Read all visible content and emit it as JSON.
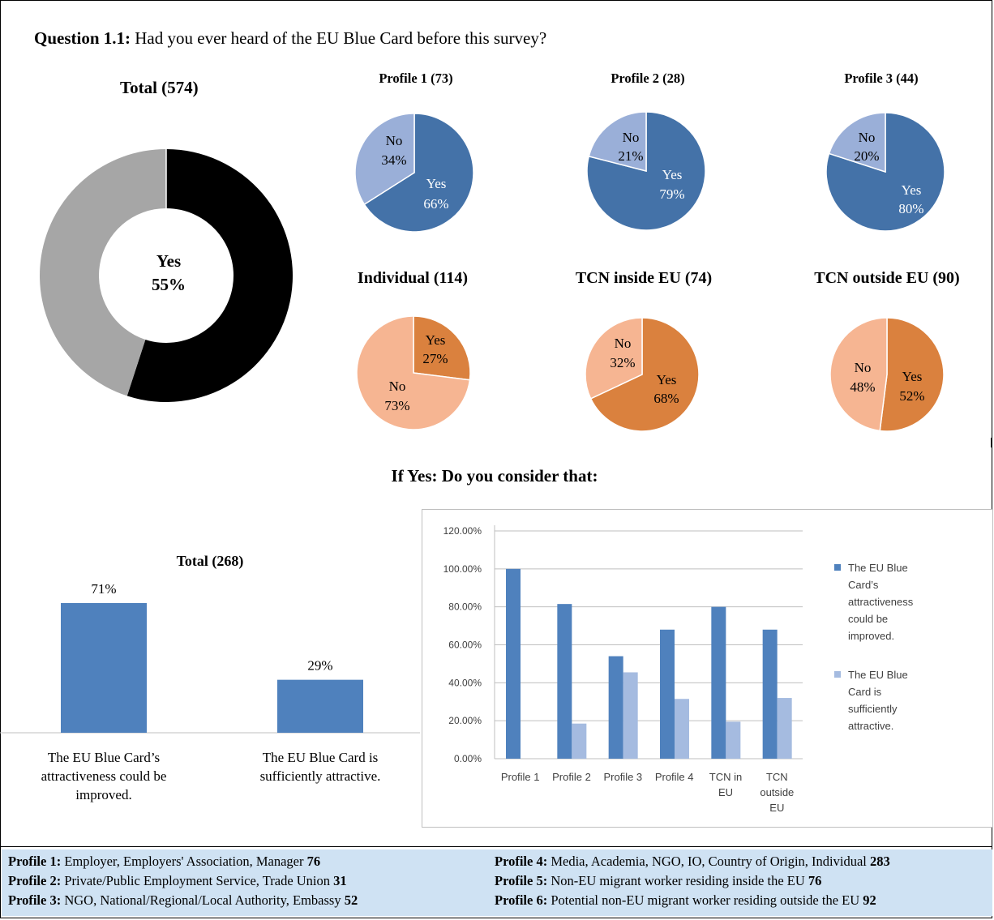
{
  "question": {
    "label": "Question 1.1:",
    "text": "Had you ever heard of the EU Blue Card before this survey?"
  },
  "total_title": "Total (574)",
  "donut_center": {
    "label": "Yes",
    "value": "55%"
  },
  "profile_titles": [
    "Profile 1 (73)",
    "Profile 2 (28)",
    "Profile 3 (44)"
  ],
  "group_titles": [
    "Individual (114)",
    "TCN inside EU (74)",
    "TCN outside EU (90)"
  ],
  "followup_title": "If Yes: Do you consider that:",
  "bar_total_title": "Total (268)",
  "bar_total_categories": [
    "The EU Blue Card’s attractiveness could be improved.",
    "The EU Blue Card is sufficiently attractive."
  ],
  "bar_total_value_labels": [
    "71%",
    "29%"
  ],
  "legend": [
    "The EU Blue Card’s attractiveness could be improved.",
    "The EU Blue Card is sufficiently attractive."
  ],
  "colors": {
    "blue": "#4472a8",
    "light_blue": "#9aafd8",
    "orange": "#da813e",
    "peach": "#f6b592",
    "black": "#000000",
    "gray": "#a6a6a6",
    "bar_blue": "#4f81bd",
    "bar_light": "#a5bbe0",
    "footer_bg": "#cfe2f3"
  },
  "footer": {
    "left": [
      {
        "label": "Profile 1:",
        "text": "Employer, Employers' Association, Manager",
        "count": "76"
      },
      {
        "label": "Profile 2:",
        "text": "Private/Public Employment Service, Trade Union",
        "count": "31"
      },
      {
        "label": "Profile 3:",
        "text": "NGO, National/Regional/Local Authority, Embassy",
        "count": "52"
      }
    ],
    "right": [
      {
        "label": "Profile 4:",
        "text": "Media, Academia, NGO, IO, Country of Origin, Individual",
        "count": "283"
      },
      {
        "label": "Profile 5:",
        "text": "Non-EU migrant worker residing inside the EU",
        "count": "76"
      },
      {
        "label": "Profile 6:",
        "text": "Potential non-EU migrant worker residing outside the EU",
        "count": "92"
      }
    ]
  },
  "chart_data": [
    {
      "type": "pie",
      "title": "Total (574)",
      "categories": [
        "Yes",
        "No"
      ],
      "values": [
        55,
        45
      ],
      "colors": [
        "#000000",
        "#a6a6a6"
      ]
    },
    {
      "type": "pie",
      "title": "Profile 1 (73)",
      "categories": [
        "Yes",
        "No"
      ],
      "values": [
        66,
        34
      ],
      "labels": [
        "66%",
        "34%"
      ],
      "colors": [
        "#4472a8",
        "#9aafd8"
      ]
    },
    {
      "type": "pie",
      "title": "Profile 2 (28)",
      "categories": [
        "Yes",
        "No"
      ],
      "values": [
        79,
        21
      ],
      "labels": [
        "79%",
        "21%"
      ],
      "colors": [
        "#4472a8",
        "#9aafd8"
      ]
    },
    {
      "type": "pie",
      "title": "Profile 3 (44)",
      "categories": [
        "Yes",
        "No"
      ],
      "values": [
        80,
        20
      ],
      "labels": [
        "80%",
        "20%"
      ],
      "colors": [
        "#4472a8",
        "#9aafd8"
      ]
    },
    {
      "type": "pie",
      "title": "Individual (114)",
      "categories": [
        "Yes",
        "No"
      ],
      "values": [
        27,
        73
      ],
      "labels": [
        "27%",
        "73%"
      ],
      "colors": [
        "#da813e",
        "#f6b592"
      ]
    },
    {
      "type": "pie",
      "title": "TCN inside EU (74)",
      "categories": [
        "Yes",
        "No"
      ],
      "values": [
        68,
        32
      ],
      "labels": [
        "68%",
        "32%"
      ],
      "colors": [
        "#da813e",
        "#f6b592"
      ]
    },
    {
      "type": "pie",
      "title": "TCN outside EU (90)",
      "categories": [
        "Yes",
        "No"
      ],
      "values": [
        52,
        48
      ],
      "labels": [
        "52%",
        "48%"
      ],
      "colors": [
        "#da813e",
        "#f6b592"
      ]
    },
    {
      "type": "bar",
      "title": "Total (268)",
      "categories": [
        "The EU Blue Card’s attractiveness could be improved.",
        "The EU Blue Card is sufficiently attractive."
      ],
      "values": [
        71,
        29
      ]
    },
    {
      "type": "bar",
      "categories": [
        "Profile 1",
        "Profile 2",
        "Profile 3",
        "Profile 4",
        "TCN in EU",
        "TCN outside EU"
      ],
      "series": [
        {
          "name": "The EU Blue Card’s attractiveness could be improved.",
          "values": [
            100,
            81.5,
            54,
            68,
            80,
            68
          ]
        },
        {
          "name": "The EU Blue Card is sufficiently attractive.",
          "values": [
            0,
            18.5,
            45.5,
            31.5,
            19.5,
            32
          ]
        }
      ],
      "ylim": [
        0,
        120
      ],
      "yticks": [
        "0.00%",
        "20.00%",
        "40.00%",
        "60.00%",
        "80.00%",
        "100.00%",
        "120.00%"
      ],
      "grid": true,
      "legend": "right"
    }
  ]
}
